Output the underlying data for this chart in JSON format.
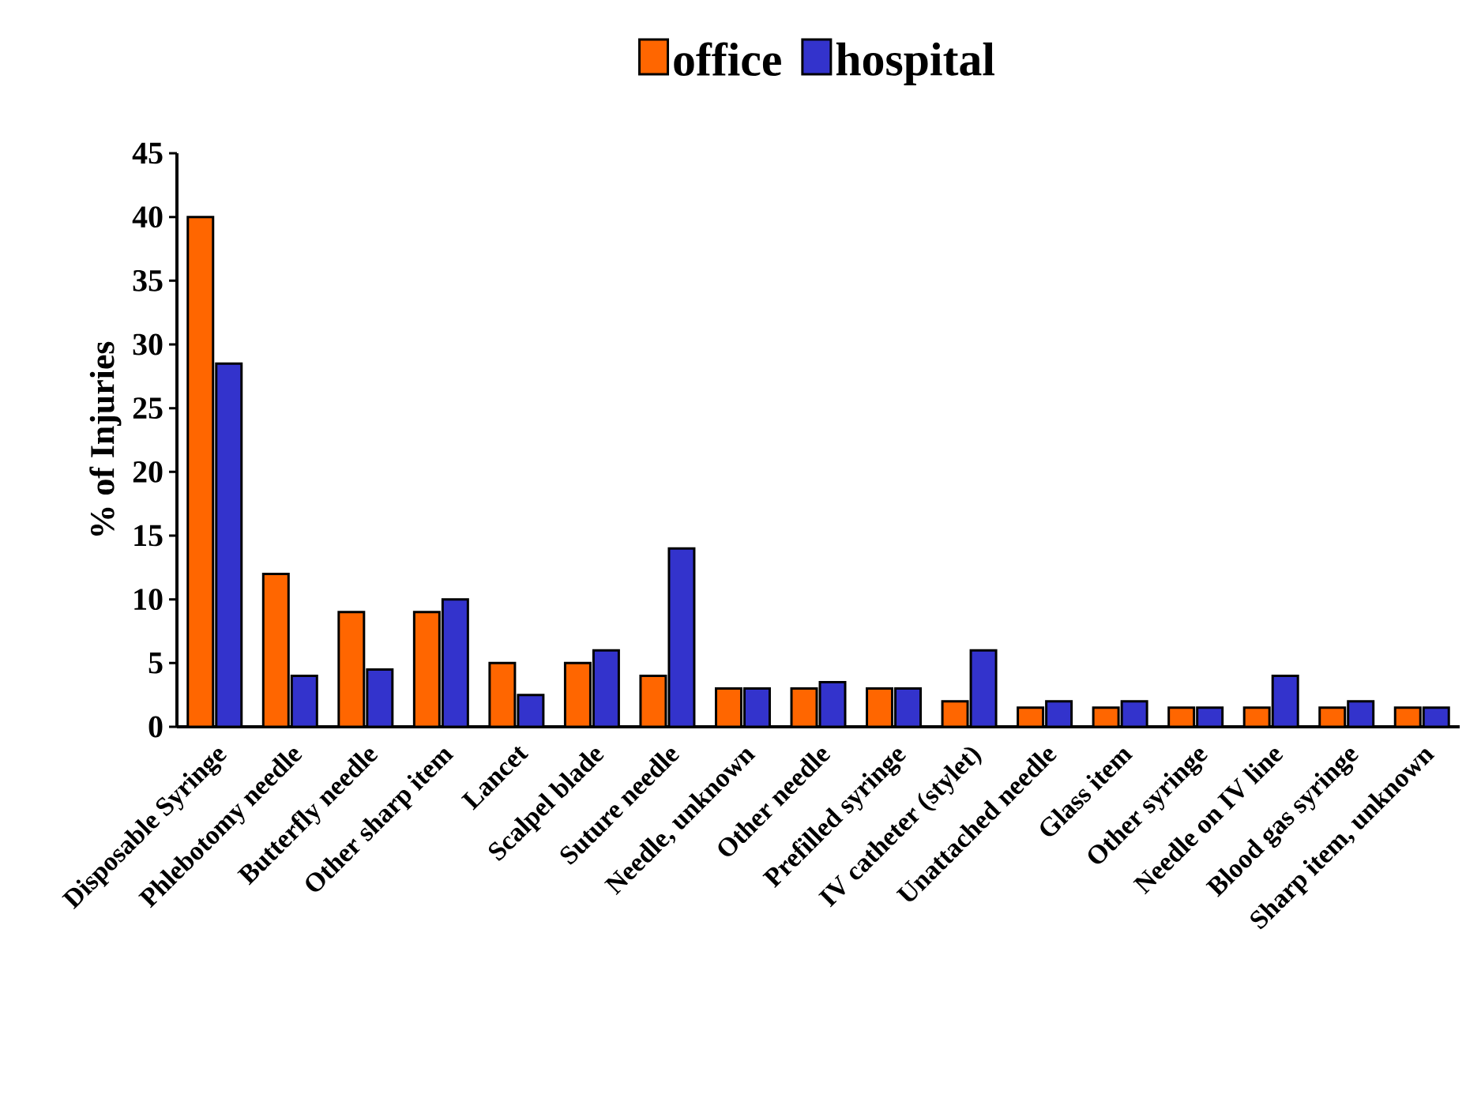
{
  "chart_data": {
    "type": "bar",
    "ylabel": "% of Injuries",
    "categories": [
      "Disposable Syringe",
      "Phlebotomy needle",
      "Butterfly needle",
      "Other sharp item",
      "Lancet",
      "Scalpel blade",
      "Suture needle",
      "Needle, unknown",
      "Other needle",
      "Prefilled syringe",
      "IV catheter (stylet)",
      "Unattached needle",
      "Glass item",
      "Other syringe",
      "Needle on IV line",
      "Blood gas syringe",
      "Sharp item, unknown"
    ],
    "series": [
      {
        "name": "office",
        "color": "#ff6600",
        "values": [
          40,
          12,
          9,
          9,
          5,
          5,
          4,
          3,
          3,
          3,
          2,
          1.5,
          1.5,
          1.5,
          1.5,
          1.5,
          1.5
        ]
      },
      {
        "name": "hospital",
        "color": "#3333cc",
        "values": [
          28.5,
          4,
          4.5,
          10,
          2.5,
          6,
          14,
          3,
          3.5,
          3,
          6,
          2,
          2,
          1.5,
          4,
          2,
          1.5
        ]
      }
    ],
    "ylim": [
      0,
      45
    ],
    "yticks": [
      0,
      5,
      10,
      15,
      20,
      25,
      30,
      35,
      40,
      45
    ],
    "grid": false,
    "legend": "top"
  }
}
